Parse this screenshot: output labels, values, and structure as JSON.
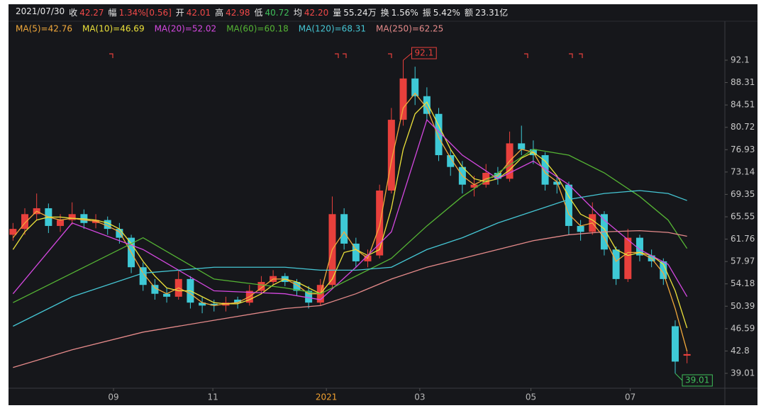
{
  "chart_data": {
    "type": "candlestick",
    "date": "2021/07/30",
    "header": [
      {
        "label": "收",
        "value": "42.27",
        "color": "#f04848"
      },
      {
        "label": "幅",
        "value": "1.34%[0.56]",
        "color": "#f04848"
      },
      {
        "label": "开",
        "value": "42.01",
        "color": "#f04848"
      },
      {
        "label": "高",
        "value": "42.98",
        "color": "#f04848"
      },
      {
        "label": "低",
        "value": "40.72",
        "color": "#3fbf5a"
      },
      {
        "label": "均",
        "value": "42.20",
        "color": "#f04848"
      },
      {
        "label": "量",
        "value": "55.24万",
        "color": "#e8e8e8"
      },
      {
        "label": "换",
        "value": "1.56%",
        "color": "#e8e8e8"
      },
      {
        "label": "振",
        "value": "5.42%",
        "color": "#e8e8e8"
      },
      {
        "label": "额",
        "value": "23.31亿",
        "color": "#e8e8e8"
      }
    ],
    "up_color": "#e8403c",
    "down_color": "#3ec9d6",
    "x": [
      1,
      6,
      11,
      16,
      21,
      26,
      31,
      36,
      41,
      46,
      51,
      56,
      61,
      66,
      71,
      76,
      81,
      86,
      91,
      96,
      101,
      106,
      111,
      116,
      121,
      126,
      131,
      136,
      141,
      146,
      151,
      156,
      161,
      166,
      171,
      176,
      181,
      186,
      191,
      196,
      201,
      206,
      211,
      216,
      221,
      226,
      231,
      236,
      241,
      246,
      251,
      256,
      261,
      266,
      271,
      276,
      281,
      286
    ],
    "ohlc": [
      [
        62.5,
        64.5,
        61.5,
        63.5
      ],
      [
        63.5,
        67,
        62.5,
        66
      ],
      [
        66,
        69.5,
        65,
        67
      ],
      [
        67,
        67.8,
        62.8,
        64
      ],
      [
        64,
        66,
        63,
        65
      ],
      [
        65,
        68,
        64.2,
        66
      ],
      [
        66,
        66.8,
        63.5,
        64.5
      ],
      [
        64.5,
        66,
        63.6,
        65
      ],
      [
        65,
        65.6,
        62.5,
        63.5
      ],
      [
        63.5,
        64.5,
        61,
        62
      ],
      [
        62,
        62.5,
        56,
        57
      ],
      [
        57,
        57.8,
        53,
        54
      ],
      [
        54,
        55,
        51.5,
        52.5
      ],
      [
        52.5,
        53.5,
        51,
        52
      ],
      [
        52,
        56.5,
        51.5,
        55
      ],
      [
        55,
        55.5,
        50,
        51
      ],
      [
        51,
        52,
        49.2,
        50.5
      ],
      [
        50.8,
        51.5,
        49.5,
        50.5
      ],
      [
        50.5,
        52,
        49.5,
        51
      ],
      [
        51.5,
        52,
        50,
        51
      ],
      [
        51,
        54,
        50.5,
        53
      ],
      [
        53,
        55.5,
        52.5,
        54.5
      ],
      [
        54.5,
        56.5,
        54,
        55.5
      ],
      [
        55.5,
        56,
        53.8,
        54.5
      ],
      [
        54.5,
        55,
        52.2,
        53
      ],
      [
        53,
        53.8,
        50,
        51
      ],
      [
        51,
        55,
        50.5,
        54
      ],
      [
        54,
        69,
        53.5,
        66
      ],
      [
        66,
        67,
        60,
        61
      ],
      [
        61,
        62,
        57,
        58
      ],
      [
        58,
        60,
        57,
        59
      ],
      [
        59,
        71,
        58.5,
        70
      ],
      [
        70,
        84,
        69.5,
        82
      ],
      [
        82,
        92.1,
        81,
        89
      ],
      [
        89,
        91,
        84.5,
        86
      ],
      [
        86,
        87.5,
        82,
        83
      ],
      [
        83,
        84,
        75,
        76
      ],
      [
        76,
        77,
        72.5,
        74
      ],
      [
        74,
        75,
        69.5,
        71
      ],
      [
        70.5,
        72.5,
        69,
        71
      ],
      [
        71,
        74.5,
        70.5,
        73
      ],
      [
        73,
        74,
        71,
        72
      ],
      [
        72,
        80,
        71.5,
        78
      ],
      [
        78,
        81,
        76,
        77
      ],
      [
        77,
        78.5,
        74.5,
        76
      ],
      [
        76,
        76.5,
        70,
        71
      ],
      [
        71.5,
        72.5,
        69.5,
        71
      ],
      [
        71,
        71.5,
        62.5,
        64
      ],
      [
        64,
        65,
        61.5,
        63
      ],
      [
        63,
        68,
        62.5,
        66
      ],
      [
        66,
        66.5,
        59,
        60
      ],
      [
        60,
        60.5,
        54,
        55
      ],
      [
        55,
        63.5,
        54.5,
        62
      ],
      [
        62,
        62.5,
        58,
        59
      ],
      [
        59,
        60,
        57,
        58
      ],
      [
        58,
        58.5,
        54,
        55
      ],
      [
        47,
        48,
        39.01,
        41
      ],
      [
        42.01,
        42.98,
        40.72,
        42.27
      ]
    ],
    "series": [
      {
        "name": "MA(5)=42.76",
        "color": "#f2a93b",
        "x": [
          1,
          6,
          11,
          16,
          21,
          26,
          31,
          36,
          41,
          46,
          51,
          56,
          61,
          66,
          71,
          76,
          81,
          86,
          91,
          96,
          101,
          106,
          111,
          116,
          121,
          126,
          131,
          136,
          141,
          146,
          151,
          156,
          161,
          166,
          171,
          176,
          181,
          186,
          191,
          196,
          201,
          206,
          211,
          216,
          221,
          226,
          231,
          236,
          241,
          246,
          251,
          256,
          261,
          266,
          271,
          276,
          281,
          286
        ],
        "values": [
          62,
          64.5,
          66.5,
          65.5,
          65,
          65.3,
          65,
          64.8,
          64,
          63,
          59.5,
          56,
          53.5,
          52.5,
          53.5,
          52.5,
          51,
          50.5,
          50.8,
          51,
          52,
          53.5,
          55,
          55,
          54,
          52.5,
          52.5,
          60,
          63,
          60,
          58.5,
          64,
          75,
          84,
          86.5,
          84,
          79,
          75.5,
          72.5,
          71,
          72,
          72.5,
          75,
          77,
          76.5,
          73,
          71.5,
          66,
          64,
          64.5,
          62,
          58,
          59.5,
          59.5,
          58.5,
          56,
          50,
          42.76
        ]
      },
      {
        "name": "MA(10)=46.69",
        "color": "#ece13a",
        "x": [
          1,
          6,
          11,
          16,
          21,
          26,
          31,
          36,
          41,
          46,
          51,
          56,
          61,
          66,
          71,
          76,
          81,
          86,
          91,
          96,
          101,
          106,
          111,
          116,
          121,
          126,
          131,
          136,
          141,
          146,
          151,
          156,
          161,
          166,
          171,
          176,
          181,
          186,
          191,
          196,
          201,
          206,
          211,
          216,
          221,
          226,
          231,
          236,
          241,
          246,
          251,
          256,
          261,
          266,
          271,
          276,
          281,
          286
        ],
        "values": [
          60,
          63,
          65,
          65.5,
          65.5,
          65.3,
          65.2,
          65,
          64.5,
          63.5,
          61,
          58,
          55.5,
          53.5,
          53,
          53,
          52,
          51,
          50.8,
          50.8,
          51.5,
          52.5,
          54,
          55,
          54.5,
          53.5,
          52.5,
          55,
          59.5,
          60,
          59,
          60,
          67,
          77,
          83,
          85,
          81,
          77,
          74,
          72,
          71.5,
          72,
          73.5,
          75.5,
          76.5,
          75,
          72.5,
          69,
          66,
          65,
          63.5,
          60,
          59,
          59.5,
          59,
          57.5,
          53,
          46.69
        ]
      },
      {
        "name": "MA(20)=52.02",
        "color": "#d448e0",
        "x": [
          1,
          26,
          56,
          86,
          116,
          131,
          146,
          161,
          176,
          191,
          206,
          221,
          236,
          251,
          266,
          278,
          286
        ],
        "values": [
          52.5,
          64.5,
          60,
          53,
          52.5,
          51.5,
          57,
          63,
          82,
          76,
          72,
          75,
          71,
          65,
          60,
          57.5,
          52.02
        ]
      },
      {
        "name": "MA(60)=60.18",
        "color": "#55b534",
        "x": [
          1,
          26,
          56,
          86,
          116,
          131,
          146,
          161,
          176,
          191,
          206,
          221,
          236,
          251,
          266,
          278,
          286
        ],
        "values": [
          51,
          56,
          62,
          55,
          53.5,
          52.5,
          55.5,
          58.5,
          64,
          69,
          73,
          77,
          76,
          73,
          69,
          65,
          60.18
        ]
      },
      {
        "name": "MA(120)=68.31",
        "color": "#45c6d4",
        "x": [
          1,
          26,
          56,
          86,
          116,
          131,
          146,
          161,
          176,
          191,
          206,
          221,
          236,
          251,
          266,
          278,
          286
        ],
        "values": [
          47,
          52,
          56,
          57,
          57,
          56.5,
          56.5,
          57,
          60,
          62,
          64.5,
          66.5,
          68.5,
          69.5,
          70,
          69.5,
          68.31
        ]
      },
      {
        "name": "MA(250)=62.25",
        "color": "#e58a8a",
        "x": [
          1,
          26,
          56,
          86,
          116,
          131,
          146,
          161,
          176,
          191,
          206,
          221,
          236,
          251,
          266,
          278,
          286
        ],
        "values": [
          40,
          43,
          46,
          48,
          50,
          50.5,
          52.5,
          55,
          57,
          58.5,
          60,
          61.5,
          62.5,
          63,
          63.2,
          62.9,
          62.25
        ]
      }
    ],
    "max_label": {
      "value": 92.1,
      "x": 166
    },
    "min_label": {
      "value": 39.01,
      "x": 281
    },
    "xlim": [
      0,
      302
    ],
    "xticks": [
      {
        "value": 43.5,
        "label": "09",
        "color": "#b8b8b8"
      },
      {
        "value": 85.5,
        "label": "11",
        "color": "#b8b8b8"
      },
      {
        "value": 133.5,
        "label": "2021",
        "color": "#f0a030"
      },
      {
        "value": 173,
        "label": "03",
        "color": "#b8b8b8"
      },
      {
        "value": 220,
        "label": "05",
        "color": "#b8b8b8"
      },
      {
        "value": 262,
        "label": "07",
        "color": "#b8b8b8"
      }
    ],
    "ylim": [
      36.85,
      95.1
    ],
    "yticks": [
      92.1,
      88.31,
      84.51,
      80.72,
      76.93,
      73.14,
      69.35,
      65.55,
      61.76,
      57.97,
      54.18,
      50.39,
      46.59,
      42.8,
      39.01
    ]
  }
}
